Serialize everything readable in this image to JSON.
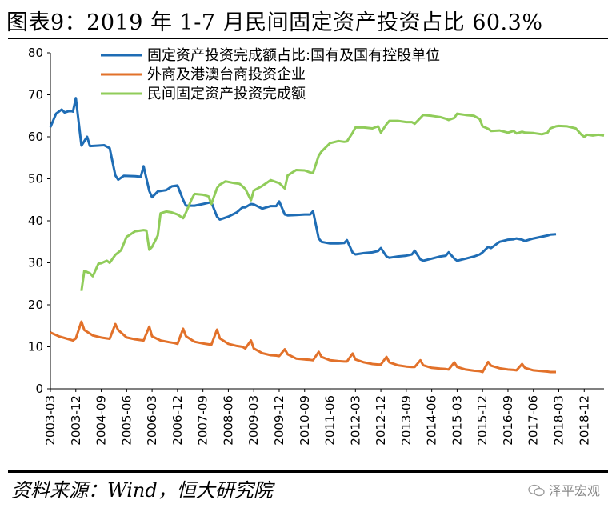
{
  "header": {
    "title": "图表9：2019 年 1-7 月民间固定资产投资占比 60.3%"
  },
  "footer": {
    "source": "资料来源：Wind，恒大研究院",
    "watermark": "泽平宏观"
  },
  "chart_data": {
    "type": "line",
    "title": "",
    "xlabel": "",
    "ylabel": "",
    "ylim": [
      0,
      80
    ],
    "yticks": [
      0,
      10,
      20,
      30,
      40,
      50,
      60,
      70,
      80
    ],
    "x_range": [
      "2003-03",
      "2019-07"
    ],
    "x_tick_labels": [
      "2003-03",
      "2003-12",
      "2004-09",
      "2005-06",
      "2006-03",
      "2006-12",
      "2007-09",
      "2008-06",
      "2009-03",
      "2009-12",
      "2010-09",
      "2011-06",
      "2012-03",
      "2012-12",
      "2013-09",
      "2014-06",
      "2015-03",
      "2015-12",
      "2016-09",
      "2017-06",
      "2018-03",
      "2018-12"
    ],
    "legend_position": "top",
    "grid": false,
    "series": [
      {
        "name": "固定资产投资完成额占比:国有及国有控股单位",
        "color": "#1f6db5",
        "points": [
          [
            "2003-03",
            62.3
          ],
          [
            "2003-05",
            65.5
          ],
          [
            "2003-07",
            66.5
          ],
          [
            "2003-08",
            65.8
          ],
          [
            "2003-10",
            66.2
          ],
          [
            "2003-11",
            66.0
          ],
          [
            "2003-12",
            69.2
          ],
          [
            "2004-02",
            57.9
          ],
          [
            "2004-04",
            60.0
          ],
          [
            "2004-05",
            57.8
          ],
          [
            "2004-08",
            57.9
          ],
          [
            "2004-10",
            58.0
          ],
          [
            "2004-12",
            57.3
          ],
          [
            "2005-02",
            50.8
          ],
          [
            "2005-03",
            49.8
          ],
          [
            "2005-05",
            50.7
          ],
          [
            "2005-09",
            50.6
          ],
          [
            "2005-11",
            50.5
          ],
          [
            "2005-12",
            53.0
          ],
          [
            "2006-02",
            47.1
          ],
          [
            "2006-03",
            45.6
          ],
          [
            "2006-05",
            47.0
          ],
          [
            "2006-08",
            47.3
          ],
          [
            "2006-10",
            48.2
          ],
          [
            "2006-12",
            48.4
          ],
          [
            "2007-02",
            45.0
          ],
          [
            "2007-03",
            43.6
          ],
          [
            "2007-06",
            43.6
          ],
          [
            "2007-09",
            44.0
          ],
          [
            "2007-11",
            44.3
          ],
          [
            "2007-12",
            44.4
          ],
          [
            "2008-02",
            41.0
          ],
          [
            "2008-03",
            40.3
          ],
          [
            "2008-06",
            41.0
          ],
          [
            "2008-09",
            42.0
          ],
          [
            "2008-11",
            43.2
          ],
          [
            "2008-12",
            43.2
          ],
          [
            "2009-02",
            44.0
          ],
          [
            "2009-03",
            43.9
          ],
          [
            "2009-06",
            42.9
          ],
          [
            "2009-09",
            43.5
          ],
          [
            "2009-11",
            43.5
          ],
          [
            "2009-12",
            44.6
          ],
          [
            "2010-02",
            41.5
          ],
          [
            "2010-03",
            41.3
          ],
          [
            "2010-06",
            41.4
          ],
          [
            "2010-09",
            41.5
          ],
          [
            "2010-11",
            41.5
          ],
          [
            "2010-12",
            42.3
          ],
          [
            "2011-02",
            35.8
          ],
          [
            "2011-03",
            35.0
          ],
          [
            "2011-06",
            34.6
          ],
          [
            "2011-09",
            34.6
          ],
          [
            "2011-11",
            34.7
          ],
          [
            "2011-12",
            35.4
          ],
          [
            "2012-02",
            32.4
          ],
          [
            "2012-03",
            32.0
          ],
          [
            "2012-06",
            32.3
          ],
          [
            "2012-09",
            32.5
          ],
          [
            "2012-11",
            32.8
          ],
          [
            "2012-12",
            33.5
          ],
          [
            "2013-02",
            31.5
          ],
          [
            "2013-03",
            31.2
          ],
          [
            "2013-06",
            31.5
          ],
          [
            "2013-09",
            31.7
          ],
          [
            "2013-11",
            32.0
          ],
          [
            "2013-12",
            32.9
          ],
          [
            "2014-02",
            30.8
          ],
          [
            "2014-03",
            30.5
          ],
          [
            "2014-06",
            31.0
          ],
          [
            "2014-09",
            31.5
          ],
          [
            "2014-11",
            31.7
          ],
          [
            "2014-12",
            32.5
          ],
          [
            "2015-02",
            31.0
          ],
          [
            "2015-03",
            30.5
          ],
          [
            "2015-06",
            31.0
          ],
          [
            "2015-09",
            31.5
          ],
          [
            "2015-11",
            32.0
          ],
          [
            "2015-12",
            32.5
          ],
          [
            "2016-02",
            33.8
          ],
          [
            "2016-03",
            33.5
          ],
          [
            "2016-06",
            35.0
          ],
          [
            "2016-09",
            35.5
          ],
          [
            "2016-11",
            35.6
          ],
          [
            "2016-12",
            35.8
          ],
          [
            "2017-02",
            35.5
          ],
          [
            "2017-03",
            35.2
          ],
          [
            "2017-06",
            35.8
          ],
          [
            "2017-09",
            36.2
          ],
          [
            "2017-11",
            36.5
          ],
          [
            "2017-12",
            36.7
          ],
          [
            "2018-02",
            36.8
          ]
        ]
      },
      {
        "name": "外商及港澳台商投资企业",
        "color": "#e2712a",
        "points": [
          [
            "2003-03",
            13.4
          ],
          [
            "2003-06",
            12.5
          ],
          [
            "2003-09",
            11.9
          ],
          [
            "2003-11",
            11.5
          ],
          [
            "2003-12",
            12.0
          ],
          [
            "2004-02",
            16.0
          ],
          [
            "2004-03",
            14.0
          ],
          [
            "2004-06",
            12.7
          ],
          [
            "2004-09",
            12.2
          ],
          [
            "2004-11",
            12.0
          ],
          [
            "2004-12",
            11.9
          ],
          [
            "2005-02",
            15.4
          ],
          [
            "2005-03",
            14.0
          ],
          [
            "2005-06",
            12.2
          ],
          [
            "2005-09",
            11.8
          ],
          [
            "2005-11",
            11.6
          ],
          [
            "2005-12",
            11.5
          ],
          [
            "2006-02",
            14.8
          ],
          [
            "2006-03",
            12.5
          ],
          [
            "2006-06",
            11.5
          ],
          [
            "2006-09",
            11.1
          ],
          [
            "2006-11",
            10.9
          ],
          [
            "2006-12",
            10.7
          ],
          [
            "2007-02",
            14.3
          ],
          [
            "2007-03",
            12.5
          ],
          [
            "2007-06",
            11.2
          ],
          [
            "2007-09",
            10.8
          ],
          [
            "2007-11",
            10.6
          ],
          [
            "2007-12",
            10.5
          ],
          [
            "2008-02",
            14.1
          ],
          [
            "2008-03",
            12.0
          ],
          [
            "2008-06",
            10.7
          ],
          [
            "2008-09",
            10.2
          ],
          [
            "2008-11",
            10.0
          ],
          [
            "2008-12",
            9.6
          ],
          [
            "2009-02",
            11.5
          ],
          [
            "2009-03",
            9.6
          ],
          [
            "2009-06",
            8.5
          ],
          [
            "2009-09",
            8.0
          ],
          [
            "2009-11",
            7.9
          ],
          [
            "2009-12",
            7.8
          ],
          [
            "2010-02",
            9.4
          ],
          [
            "2010-03",
            8.2
          ],
          [
            "2010-06",
            7.2
          ],
          [
            "2010-09",
            7.0
          ],
          [
            "2010-11",
            6.9
          ],
          [
            "2010-12",
            6.8
          ],
          [
            "2011-02",
            8.8
          ],
          [
            "2011-03",
            7.6
          ],
          [
            "2011-06",
            6.8
          ],
          [
            "2011-09",
            6.6
          ],
          [
            "2011-11",
            6.5
          ],
          [
            "2011-12",
            6.5
          ],
          [
            "2012-02",
            8.4
          ],
          [
            "2012-03",
            7.0
          ],
          [
            "2012-06",
            6.3
          ],
          [
            "2012-09",
            5.9
          ],
          [
            "2012-11",
            5.8
          ],
          [
            "2012-12",
            5.8
          ],
          [
            "2013-02",
            7.6
          ],
          [
            "2013-03",
            6.3
          ],
          [
            "2013-06",
            5.6
          ],
          [
            "2013-09",
            5.3
          ],
          [
            "2013-11",
            5.2
          ],
          [
            "2013-12",
            5.2
          ],
          [
            "2014-02",
            6.8
          ],
          [
            "2014-03",
            5.6
          ],
          [
            "2014-06",
            5.0
          ],
          [
            "2014-09",
            4.8
          ],
          [
            "2014-11",
            4.7
          ],
          [
            "2014-12",
            4.6
          ],
          [
            "2015-02",
            6.3
          ],
          [
            "2015-03",
            5.2
          ],
          [
            "2015-06",
            4.6
          ],
          [
            "2015-09",
            4.3
          ],
          [
            "2015-11",
            4.2
          ],
          [
            "2015-12",
            4.0
          ],
          [
            "2016-02",
            6.4
          ],
          [
            "2016-03",
            5.5
          ],
          [
            "2016-06",
            4.9
          ],
          [
            "2016-09",
            4.6
          ],
          [
            "2016-11",
            4.5
          ],
          [
            "2016-12",
            4.4
          ],
          [
            "2017-02",
            5.9
          ],
          [
            "2017-03",
            5.0
          ],
          [
            "2017-06",
            4.4
          ],
          [
            "2017-09",
            4.2
          ],
          [
            "2017-11",
            4.1
          ],
          [
            "2017-12",
            4.0
          ],
          [
            "2018-02",
            4.0
          ]
        ]
      },
      {
        "name": "民间固定资产投资完成额",
        "color": "#90cc5a",
        "points": [
          [
            "2004-02",
            23.3
          ],
          [
            "2004-03",
            28.1
          ],
          [
            "2004-05",
            27.5
          ],
          [
            "2004-06",
            26.8
          ],
          [
            "2004-08",
            29.8
          ],
          [
            "2004-09",
            29.9
          ],
          [
            "2004-11",
            30.5
          ],
          [
            "2004-12",
            30.0
          ],
          [
            "2005-02",
            31.9
          ],
          [
            "2005-04",
            33.0
          ],
          [
            "2005-06",
            36.2
          ],
          [
            "2005-07",
            36.6
          ],
          [
            "2005-09",
            37.5
          ],
          [
            "2005-12",
            37.8
          ],
          [
            "2006-01",
            37.7
          ],
          [
            "2006-02",
            33.1
          ],
          [
            "2006-03",
            33.8
          ],
          [
            "2006-05",
            36.5
          ],
          [
            "2006-06",
            41.8
          ],
          [
            "2006-08",
            42.2
          ],
          [
            "2006-10",
            42.0
          ],
          [
            "2006-12",
            41.5
          ],
          [
            "2007-02",
            40.6
          ],
          [
            "2007-03",
            42.0
          ],
          [
            "2007-05",
            45.1
          ],
          [
            "2007-06",
            46.4
          ],
          [
            "2007-09",
            46.2
          ],
          [
            "2007-11",
            45.8
          ],
          [
            "2007-12",
            44.0
          ],
          [
            "2008-02",
            47.8
          ],
          [
            "2008-03",
            48.6
          ],
          [
            "2008-05",
            49.4
          ],
          [
            "2008-08",
            49.0
          ],
          [
            "2008-10",
            48.8
          ],
          [
            "2008-12",
            47.6
          ],
          [
            "2009-02",
            44.9
          ],
          [
            "2009-03",
            47.2
          ],
          [
            "2009-06",
            48.3
          ],
          [
            "2009-09",
            49.7
          ],
          [
            "2009-11",
            49.2
          ],
          [
            "2009-12",
            49.0
          ],
          [
            "2010-02",
            47.7
          ],
          [
            "2010-03",
            50.8
          ],
          [
            "2010-06",
            52.1
          ],
          [
            "2010-09",
            52.0
          ],
          [
            "2010-11",
            51.5
          ],
          [
            "2010-12",
            51.4
          ],
          [
            "2011-02",
            55.5
          ],
          [
            "2011-03",
            56.5
          ],
          [
            "2011-06",
            58.5
          ],
          [
            "2011-09",
            59.0
          ],
          [
            "2011-11",
            58.8
          ],
          [
            "2011-12",
            58.9
          ],
          [
            "2012-02",
            61.0
          ],
          [
            "2012-03",
            62.2
          ],
          [
            "2012-06",
            62.2
          ],
          [
            "2012-09",
            62.0
          ],
          [
            "2012-11",
            62.5
          ],
          [
            "2012-12",
            61.0
          ],
          [
            "2013-02",
            63.0
          ],
          [
            "2013-03",
            63.8
          ],
          [
            "2013-06",
            63.8
          ],
          [
            "2013-09",
            63.5
          ],
          [
            "2013-11",
            63.5
          ],
          [
            "2013-12",
            63.1
          ],
          [
            "2014-02",
            64.5
          ],
          [
            "2014-03",
            65.2
          ],
          [
            "2014-06",
            65.0
          ],
          [
            "2014-09",
            64.7
          ],
          [
            "2014-11",
            64.3
          ],
          [
            "2014-12",
            64.0
          ],
          [
            "2015-02",
            64.5
          ],
          [
            "2015-03",
            65.5
          ],
          [
            "2015-06",
            65.2
          ],
          [
            "2015-09",
            65.0
          ],
          [
            "2015-11",
            64.2
          ],
          [
            "2015-12",
            62.5
          ],
          [
            "2016-02",
            61.9
          ],
          [
            "2016-03",
            61.4
          ],
          [
            "2016-06",
            61.5
          ],
          [
            "2016-09",
            61.0
          ],
          [
            "2016-11",
            61.4
          ],
          [
            "2016-12",
            60.8
          ],
          [
            "2017-02",
            61.2
          ],
          [
            "2017-03",
            61.0
          ],
          [
            "2017-06",
            60.9
          ],
          [
            "2017-09",
            60.6
          ],
          [
            "2017-11",
            61.0
          ],
          [
            "2017-12",
            62.0
          ],
          [
            "2018-02",
            62.5
          ],
          [
            "2018-03",
            62.6
          ],
          [
            "2018-06",
            62.5
          ],
          [
            "2018-09",
            62.0
          ],
          [
            "2018-11",
            60.5
          ],
          [
            "2018-12",
            60.0
          ],
          [
            "2019-01",
            60.5
          ],
          [
            "2019-03",
            60.3
          ],
          [
            "2019-05",
            60.5
          ],
          [
            "2019-07",
            60.3
          ]
        ]
      }
    ]
  }
}
